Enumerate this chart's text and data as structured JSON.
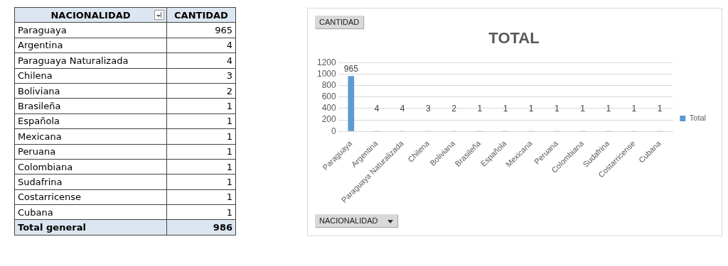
{
  "chart_data": {
    "type": "bar",
    "title": "TOTAL",
    "xlabel": "NACIONALIDAD",
    "ylabel": "CANTIDAD",
    "categories": [
      "Paraguaya",
      "Argentina",
      "Paraguaya Naturalizada",
      "Chilena",
      "Boliviana",
      "Brasileña",
      "Española",
      "Mexicana",
      "Peruana",
      "Colombiana",
      "Sudafrina",
      "Costarricense",
      "Cubana"
    ],
    "series": [
      {
        "name": "Total",
        "color": "#5b9bd5",
        "values": [
          965,
          4,
          4,
          3,
          2,
          1,
          1,
          1,
          1,
          1,
          1,
          1,
          1
        ],
        "value_labels": [
          "965",
          "4",
          "4",
          "3",
          "2",
          "1",
          "1",
          "1",
          "1",
          "1",
          "1",
          "1",
          "1"
        ]
      }
    ],
    "ylim": [
      0,
      1200
    ],
    "yticks": [
      0,
      200,
      400,
      600,
      800,
      1000,
      1200
    ],
    "grid": "y",
    "legend": "right",
    "annotations": [
      "Total general",
      "986"
    ]
  }
}
